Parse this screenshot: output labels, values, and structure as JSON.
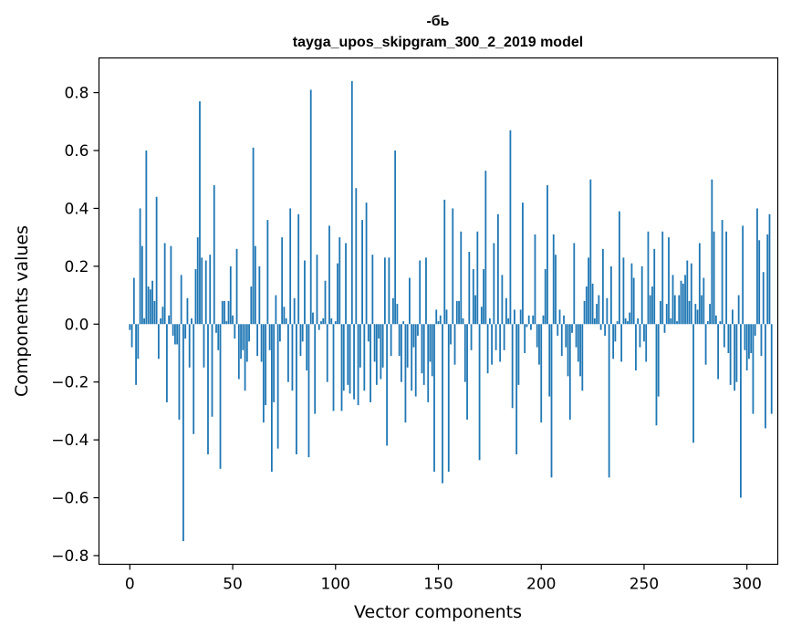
{
  "chart_data": {
    "type": "bar",
    "title": "-бь",
    "subtitle": "tayga_upos_skipgram_300_2_2019 model",
    "xlabel": "Vector components",
    "ylabel": "Components values",
    "xlim": [
      -15,
      315
    ],
    "ylim": [
      -0.83,
      0.92
    ],
    "xticks": [
      0,
      50,
      100,
      150,
      200,
      250,
      300
    ],
    "xtick_labels": [
      "0",
      "50",
      "100",
      "150",
      "200",
      "250",
      "300"
    ],
    "yticks": [
      -0.8,
      -0.6,
      -0.4,
      -0.2,
      0.0,
      0.2,
      0.4,
      0.6,
      0.8
    ],
    "ytick_labels": [
      "−0.8",
      "−0.6",
      "−0.4",
      "−0.2",
      "0.0",
      "0.2",
      "0.4",
      "0.6",
      "0.8"
    ],
    "bar_color": "#1f77b4",
    "grid": false,
    "values": [
      -0.02,
      -0.08,
      0.16,
      -0.21,
      -0.12,
      0.4,
      0.27,
      0.02,
      0.6,
      0.13,
      0.12,
      0.15,
      0.08,
      0.44,
      -0.12,
      0.02,
      0.06,
      0.28,
      -0.27,
      0.03,
      0.27,
      -0.04,
      -0.07,
      -0.07,
      -0.33,
      0.17,
      -0.75,
      -0.05,
      0.09,
      -0.15,
      0.02,
      -0.38,
      0.19,
      0.3,
      0.77,
      0.23,
      -0.15,
      0.22,
      -0.45,
      0.24,
      -0.32,
      0.48,
      -0.03,
      -0.09,
      -0.5,
      0.08,
      0.08,
      0.01,
      0.08,
      0.2,
      0.03,
      -0.05,
      0.26,
      -0.19,
      -0.12,
      -0.09,
      -0.23,
      -0.13,
      -0.06,
      0.13,
      0.61,
      0.27,
      -0.11,
      0.2,
      -0.13,
      -0.34,
      -0.28,
      0.36,
      -0.09,
      -0.51,
      -0.27,
      0.1,
      -0.43,
      -0.06,
      0.3,
      0.06,
      0.02,
      -0.2,
      0.4,
      -0.23,
      0.09,
      -0.45,
      0.38,
      -0.11,
      -0.06,
      0.22,
      -0.16,
      -0.46,
      0.81,
      0.04,
      -0.31,
      0.24,
      -0.02,
      0.01,
      0.02,
      0.15,
      -0.2,
      0.34,
      0.02,
      -0.3,
      0.01,
      0.21,
      0.3,
      -0.3,
      -0.23,
      0.28,
      -0.21,
      -0.24,
      0.84,
      -0.26,
      0.47,
      -0.28,
      -0.15,
      0.36,
      -0.23,
      0.42,
      -0.06,
      -0.27,
      0.24,
      -0.13,
      -0.21,
      -0.05,
      -0.19,
      -0.15,
      0.23,
      -0.42,
      0.23,
      -0.11,
      0.09,
      0.6,
      0.07,
      -0.11,
      -0.2,
      0.01,
      -0.34,
      -0.15,
      0.16,
      -0.23,
      -0.08,
      -0.25,
      -0.04,
      0.22,
      -0.17,
      -0.21,
      0.23,
      -0.27,
      -0.13,
      -0.18,
      -0.51,
      0.05,
      0.01,
      0.03,
      -0.55,
      0.43,
      0.05,
      -0.51,
      -0.07,
      0.4,
      -0.14,
      0.08,
      0.08,
      0.32,
      0.02,
      -0.2,
      -0.33,
      0.25,
      -0.09,
      0.19,
      0.1,
      0.32,
      -0.47,
      0.06,
      0.19,
      0.53,
      -0.17,
      0.02,
      -0.14,
      0.28,
      -0.09,
      0.38,
      -0.13,
      0.17,
      -0.09,
      0.09,
      0.02,
      0.67,
      -0.29,
      0.05,
      -0.45,
      -0.21,
      0.05,
      0.42,
      -0.1,
      -0.01,
      0.03,
      -0.02,
      0.03,
      0.31,
      -0.08,
      -0.14,
      -0.34,
      0.03,
      0.19,
      0.48,
      -0.25,
      -0.53,
      0.31,
      0.24,
      -0.04,
      0.05,
      -0.11,
      0.03,
      -0.08,
      -0.18,
      -0.33,
      -0.03,
      0.28,
      -0.08,
      -0.13,
      -0.18,
      -0.23,
      0.08,
      0.13,
      0.23,
      0.5,
      0.14,
      0.02,
      0.07,
      0.1,
      -0.02,
      0.26,
      -0.04,
      0.09,
      -0.53,
      0.2,
      -0.12,
      -0.06,
      0.01,
      0.39,
      -0.13,
      0.23,
      0.02,
      0.01,
      0.04,
      0.21,
      0.16,
      -0.16,
      0.02,
      -0.08,
      0.2,
      -0.06,
      -0.13,
      0.32,
      0.1,
      0.13,
      0.26,
      -0.35,
      -0.25,
      0.08,
      0.32,
      -0.03,
      0.07,
      0.3,
      0.02,
      0.17,
      0.1,
      0.01,
      0.1,
      0.15,
      0.14,
      0.17,
      0.22,
      0.08,
      0.21,
      -0.41,
      0.07,
      0.05,
      0.28,
      0.1,
      0.16,
      -0.14,
      0.01,
      0.07,
      0.5,
      0.32,
      0.03,
      -0.19,
      0.01,
      0.36,
      -0.08,
      0.32,
      -0.1,
      -0.21,
      0.05,
      -0.23,
      -0.2,
      0.1,
      -0.6,
      0.34,
      -0.09,
      -0.16,
      -0.12,
      -0.1,
      -0.31,
      -0.04,
      0.4,
      0.29,
      -0.11,
      0.18,
      -0.36,
      0.31,
      0.38,
      -0.31
    ]
  }
}
